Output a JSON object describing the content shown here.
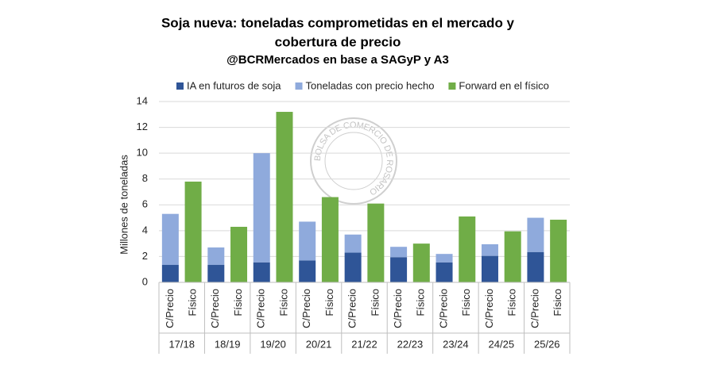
{
  "chart_data": {
    "type": "stacked-bar",
    "title": [
      "Soja nueva: toneladas comprometidas en el mercado y",
      "cobertura de precio"
    ],
    "subtitle": "@BCRMercados en base a SAGyP y A3",
    "watermark": "BOLSA DE COMERCIO DE ROSARIO",
    "y_label": "Millones de toneladas",
    "categories": [
      "C/Precio",
      "Físico",
      "C/Precio",
      "Físico",
      "C/Precio",
      "Físico",
      "C/Precio",
      "Físico",
      "C/Precio",
      "Físico",
      "C/Precio",
      "Físico",
      "C/Precio",
      "Físico",
      "C/Precio",
      "Físico",
      "C/Precio",
      "Físico"
    ],
    "groups": [
      "17/18",
      "18/19",
      "19/20",
      "20/21",
      "21/22",
      "22/23",
      "23/24",
      "24/25",
      "25/26"
    ],
    "series": [
      {
        "name": "IA en futuros de soja",
        "color": "#2f5597",
        "values": [
          1.35,
          null,
          1.35,
          null,
          1.55,
          null,
          1.7,
          null,
          2.3,
          null,
          1.95,
          null,
          1.55,
          null,
          2.05,
          null,
          2.35,
          null
        ]
      },
      {
        "name": "Toneladas con precio hecho",
        "color": "#8faadc",
        "values": [
          3.95,
          null,
          1.35,
          null,
          8.45,
          null,
          3.0,
          null,
          1.4,
          null,
          0.8,
          null,
          0.65,
          null,
          0.9,
          null,
          2.65,
          null
        ]
      },
      {
        "name": "Forward en el físico",
        "color": "#70ad47",
        "values": [
          null,
          7.8,
          null,
          4.3,
          null,
          13.2,
          null,
          6.6,
          null,
          6.1,
          null,
          3.0,
          null,
          5.1,
          null,
          3.95,
          null,
          4.85
        ]
      }
    ],
    "ylim": [
      0,
      14
    ],
    "yticks": [
      0,
      2,
      4,
      6,
      8,
      10,
      12,
      14
    ],
    "grid": true
  }
}
